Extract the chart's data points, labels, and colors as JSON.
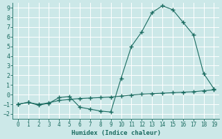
{
  "xlabel": "Humidex (Indice chaleur)",
  "bg_color": "#cce8e8",
  "grid_color": "#b8d8d8",
  "line_color": "#1a6b60",
  "xlim": [
    -0.5,
    19.5
  ],
  "ylim": [
    -2.5,
    9.5
  ],
  "xticks": [
    0,
    1,
    2,
    3,
    4,
    5,
    6,
    7,
    8,
    9,
    10,
    11,
    12,
    13,
    14,
    15,
    16,
    17,
    18,
    19
  ],
  "yticks": [
    -2,
    -1,
    0,
    1,
    2,
    3,
    4,
    5,
    6,
    7,
    8,
    9
  ],
  "line1_x": [
    0,
    1,
    2,
    3,
    4,
    5,
    6,
    7,
    8,
    9,
    10,
    11,
    12,
    13,
    14,
    15,
    16,
    17,
    18,
    19
  ],
  "line1_y": [
    -1,
    -0.8,
    -1.1,
    -0.9,
    -0.3,
    -0.2,
    -1.3,
    -1.5,
    -1.7,
    -1.8,
    1.7,
    5.0,
    6.5,
    8.5,
    9.2,
    8.8,
    7.5,
    6.2,
    2.2,
    0.6
  ],
  "line2_x": [
    0,
    1,
    2,
    3,
    4,
    5,
    6,
    7,
    8,
    9,
    10,
    11,
    12,
    13,
    14,
    15,
    16,
    17,
    18,
    19
  ],
  "line2_y": [
    -1,
    -0.8,
    -1.0,
    -0.85,
    -0.6,
    -0.5,
    -0.4,
    -0.35,
    -0.3,
    -0.25,
    -0.15,
    -0.05,
    0.05,
    0.1,
    0.15,
    0.2,
    0.25,
    0.3,
    0.4,
    0.5
  ]
}
